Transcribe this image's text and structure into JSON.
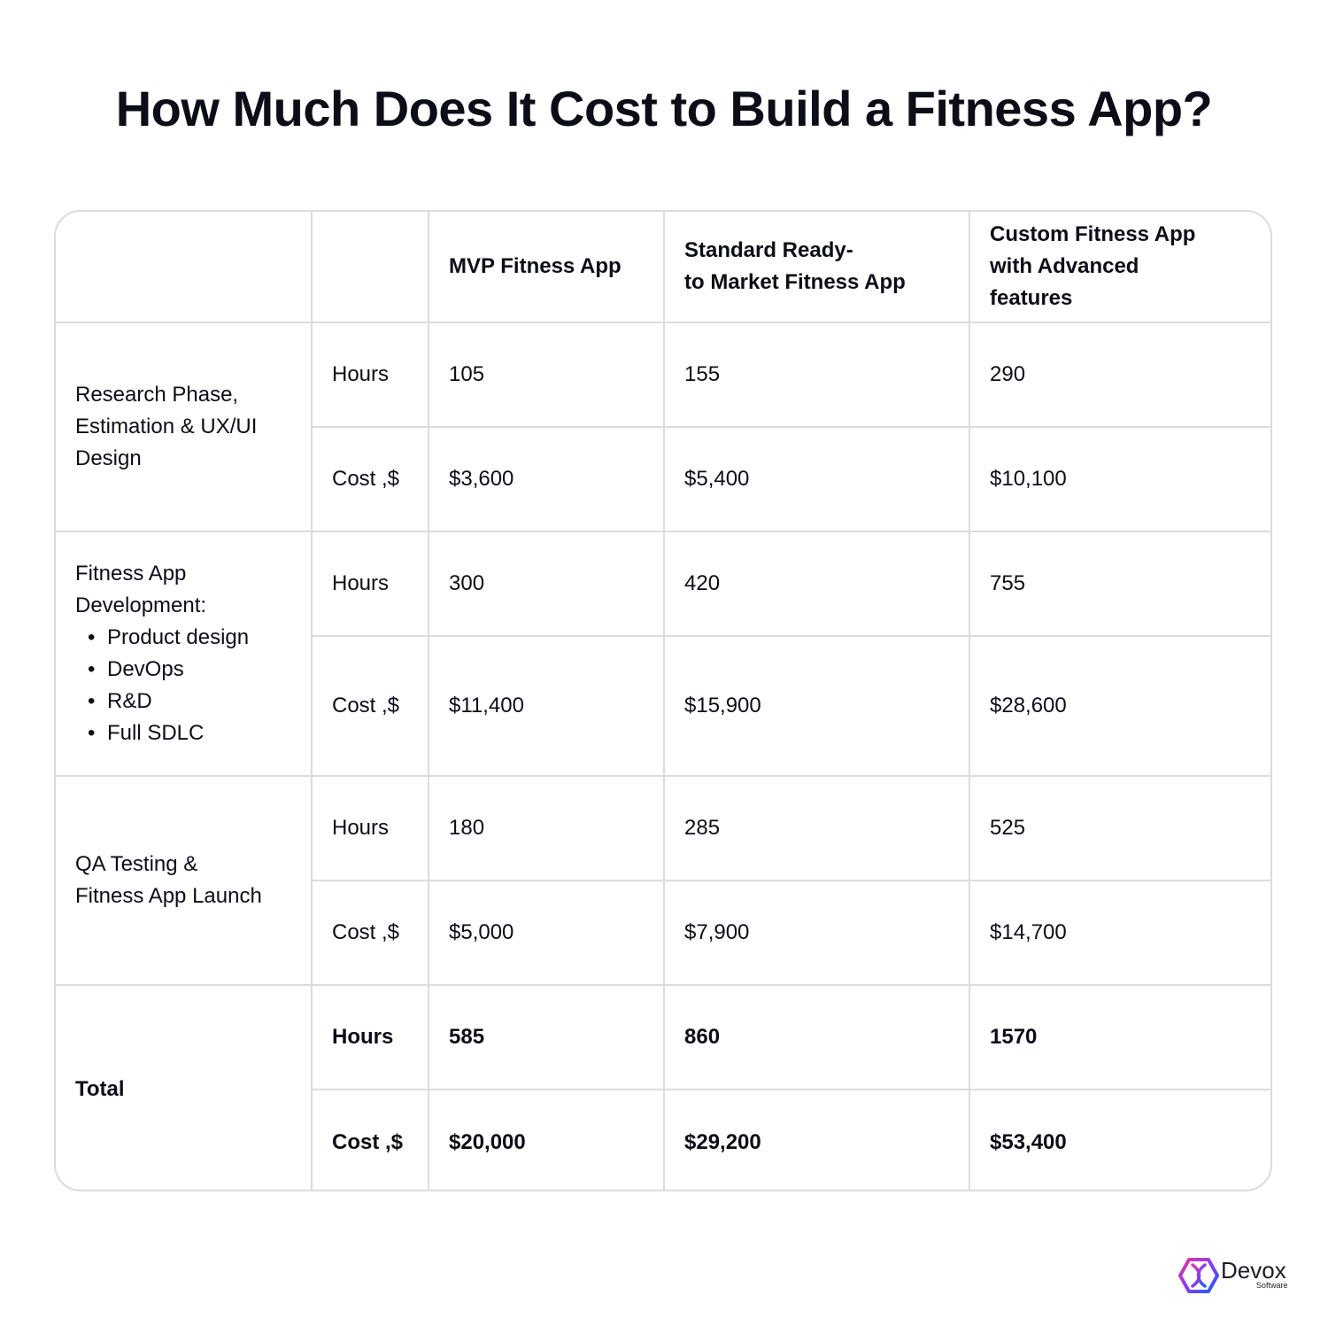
{
  "title": "How Much Does It Cost to Build a Fitness App?",
  "table": {
    "headers": [
      "",
      "",
      "MVP Fitness App",
      "Standard Ready-\nto  Market Fitness App",
      "Custom Fitness App\nwith Advanced\nfeatures"
    ],
    "sections": [
      {
        "label": "Research Phase,\nEstimation & UX/UI\nDesign",
        "bullets": [],
        "hours_label": "Hours",
        "hours": [
          "105",
          "155",
          "290"
        ],
        "cost_label": "Cost ,$",
        "cost": [
          "$3,600",
          "$5,400",
          "$10,100"
        ]
      },
      {
        "label": "Fitness App\nDevelopment:",
        "bullets": [
          "Product design",
          "DevOps",
          "R&D",
          "Full SDLC"
        ],
        "hours_label": "Hours",
        "hours": [
          "300",
          "420",
          "755"
        ],
        "cost_label": "Cost ,$",
        "cost": [
          "$11,400",
          "$15,900",
          "$28,600"
        ]
      },
      {
        "label": "QA Testing &\nFitness App Launch",
        "bullets": [],
        "hours_label": "Hours",
        "hours": [
          "180",
          "285",
          "525"
        ],
        "cost_label": "Cost ,$",
        "cost": [
          "$5,000",
          "$7,900",
          "$14,700"
        ]
      },
      {
        "label": "Total",
        "bullets": [],
        "hours_label": "Hours",
        "hours": [
          "585",
          "860",
          "1570"
        ],
        "cost_label": "Cost ,$",
        "cost": [
          "$20,000",
          "$29,200",
          "$53,400"
        ]
      }
    ]
  },
  "brand": {
    "name": "Devox",
    "sub": "Software",
    "icon": "devox-logo-icon",
    "colors": [
      "#1f5ff0",
      "#e0399b",
      "#8a3cf0"
    ]
  }
}
